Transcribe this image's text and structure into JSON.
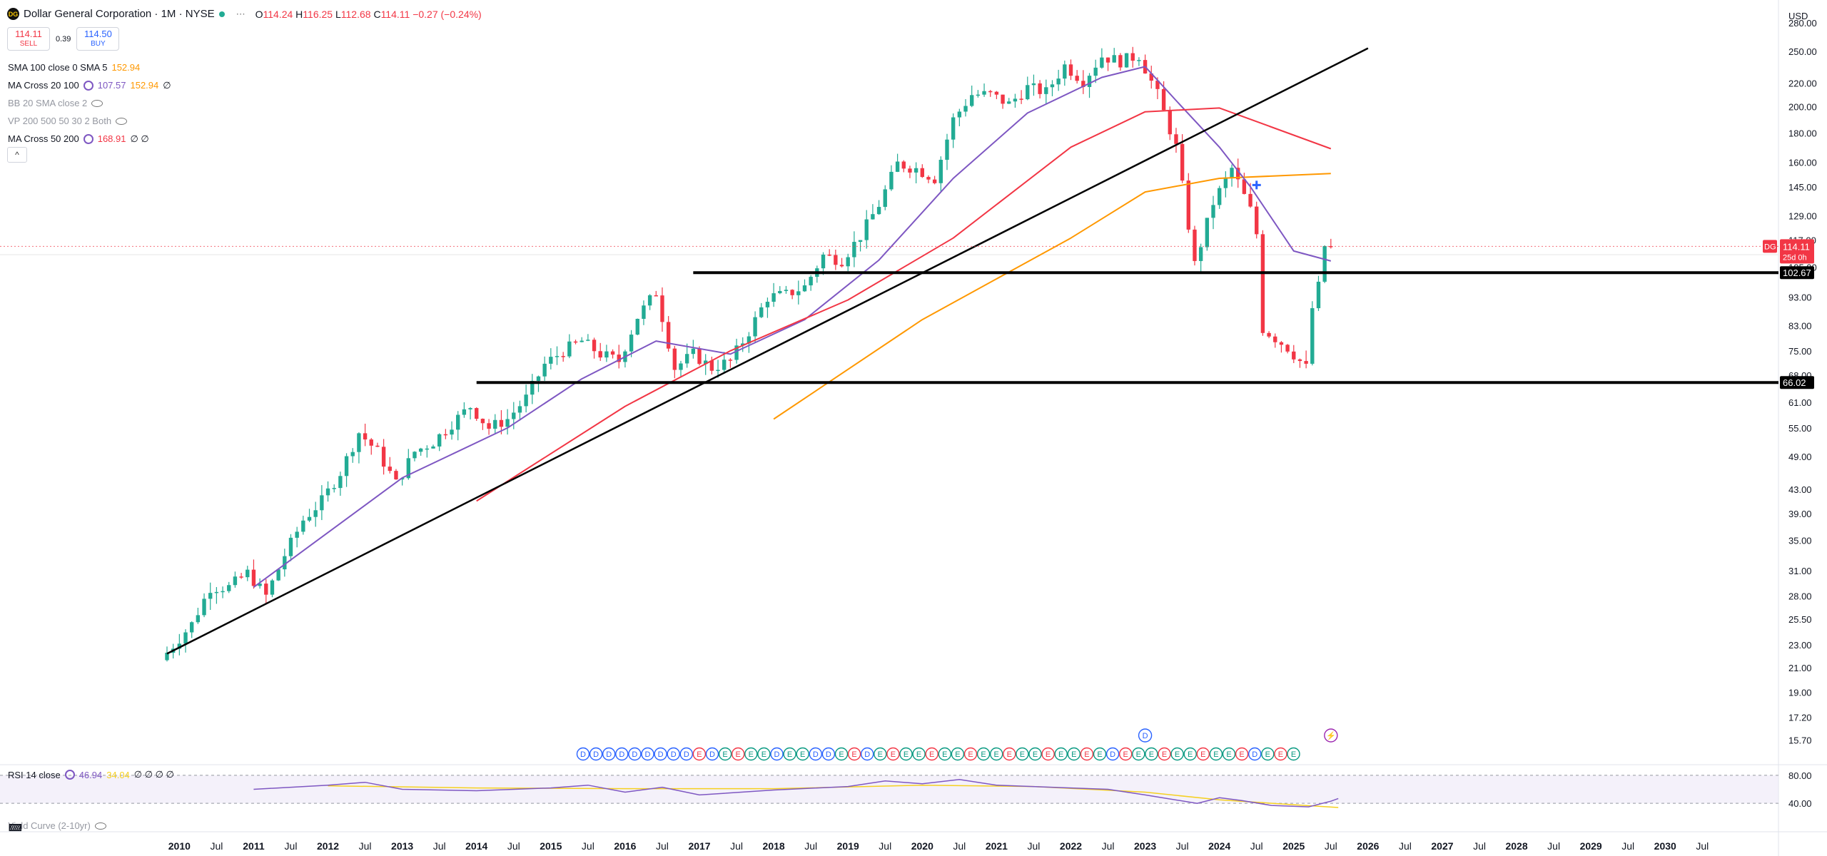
{
  "header": {
    "logo_text": "DG",
    "title": "Dollar General Corporation · 1M · NYSE",
    "ohlc": {
      "o_label": "O",
      "o": "114.24",
      "h_label": "H",
      "h": "116.25",
      "l_label": "L",
      "l": "112.68",
      "c_label": "C",
      "c": "114.11",
      "change": "−0.27 (−0.24%)"
    }
  },
  "trade": {
    "sell_price": "114.11",
    "sell_label": "SELL",
    "spread": "0.39",
    "buy_price": "114.50",
    "buy_label": "BUY"
  },
  "indicators": [
    {
      "label": "SMA 100 close 0 SMA 5",
      "v1": "152.94",
      "v1_color": "#ff9800",
      "v2": "",
      "extra": ""
    },
    {
      "label": "MA Cross 20 100",
      "v1": "107.57",
      "v1_color": "#7e57c2",
      "v2": "152.94",
      "v2_color": "#ff9800",
      "extra": "∅"
    },
    {
      "label": "BB 20 SMA close 2",
      "v1": "",
      "v2": "",
      "extra": "",
      "faded": true
    },
    {
      "label": "VP 200 500 50 30 2 Both",
      "v1": "",
      "v2": "",
      "extra": "",
      "faded": true
    },
    {
      "label": "MA Cross 50 200",
      "v1": "168.91",
      "v1_color": "#f23645",
      "v2": "",
      "extra": "∅ ∅"
    }
  ],
  "rsi_legend": {
    "label": "RSI 14 close",
    "v1": "46.94",
    "v2": "34.04",
    "extra": "∅ ∅ ∅ ∅"
  },
  "yield_legend": {
    "label": "Yield Curve (2-10yr)"
  },
  "colors": {
    "up": "#22ab94",
    "down": "#f23645",
    "ma20": "#7e57c2",
    "ma50": "#f23645",
    "sma100": "#ff9800",
    "trend": "#000000",
    "rsi": "#7e57c2",
    "rsi_ma": "#f5d020",
    "rsi_band": "#ede7f6"
  },
  "chart_data": {
    "type": "candlestick",
    "symbol": "DG",
    "price_scale": "log",
    "currency": "USD",
    "ylim": [
      14.5,
      290
    ],
    "y_ticks": [
      "280.00",
      "250.00",
      "220.00",
      "200.00",
      "180.00",
      "160.00",
      "145.00",
      "129.00",
      "117.00",
      "105.00",
      "93.00",
      "83.00",
      "75.00",
      "68.00",
      "61.00",
      "55.00",
      "49.00",
      "43.00",
      "39.00",
      "35.00",
      "31.00",
      "28.00",
      "25.50",
      "23.00",
      "21.00",
      "19.00",
      "17.20",
      "15.70"
    ],
    "x_ticks": [
      "2010",
      "Jul",
      "2011",
      "Jul",
      "2012",
      "Jul",
      "2013",
      "Jul",
      "2014",
      "Jul",
      "2015",
      "Jul",
      "2016",
      "Jul",
      "2017",
      "Jul",
      "2018",
      "Jul",
      "2019",
      "Jul",
      "2020",
      "Jul",
      "2021",
      "Jul",
      "2022",
      "Jul",
      "2023",
      "Jul",
      "2024",
      "Jul",
      "2025",
      "Jul",
      "2026",
      "Jul",
      "2027",
      "Jul",
      "2028",
      "Jul",
      "2029",
      "Jul",
      "2030",
      "Jul"
    ],
    "x_range": [
      "2009-11",
      "2030-11"
    ],
    "close_anchors": [
      [
        "2009-11",
        22.3
      ],
      [
        "2010-03",
        25
      ],
      [
        "2010-06",
        29
      ],
      [
        "2010-09",
        29
      ],
      [
        "2010-12",
        30.7
      ],
      [
        "2011-03",
        28
      ],
      [
        "2011-06",
        33
      ],
      [
        "2011-09",
        38
      ],
      [
        "2011-12",
        41
      ],
      [
        "2012-03",
        46
      ],
      [
        "2012-06",
        54
      ],
      [
        "2012-09",
        50
      ],
      [
        "2012-12",
        44
      ],
      [
        "2013-03",
        50
      ],
      [
        "2013-06",
        52
      ],
      [
        "2013-09",
        56
      ],
      [
        "2013-12",
        60
      ],
      [
        "2014-03",
        55
      ],
      [
        "2014-06",
        57
      ],
      [
        "2014-09",
        62
      ],
      [
        "2014-12",
        71
      ],
      [
        "2015-03",
        75
      ],
      [
        "2015-06",
        78
      ],
      [
        "2015-09",
        74
      ],
      [
        "2015-12",
        72
      ],
      [
        "2016-03",
        86
      ],
      [
        "2016-06",
        95
      ],
      [
        "2016-09",
        70
      ],
      [
        "2016-12",
        74
      ],
      [
        "2017-03",
        70
      ],
      [
        "2017-06",
        72
      ],
      [
        "2017-09",
        81
      ],
      [
        "2017-12",
        93
      ],
      [
        "2018-03",
        94
      ],
      [
        "2018-06",
        97
      ],
      [
        "2018-09",
        110
      ],
      [
        "2018-12",
        108
      ],
      [
        "2019-03",
        119
      ],
      [
        "2019-06",
        135
      ],
      [
        "2019-09",
        159
      ],
      [
        "2019-12",
        156
      ],
      [
        "2020-03",
        150
      ],
      [
        "2020-06",
        190
      ],
      [
        "2020-09",
        210
      ],
      [
        "2020-12",
        210
      ],
      [
        "2021-03",
        202
      ],
      [
        "2021-06",
        216
      ],
      [
        "2021-09",
        212
      ],
      [
        "2021-12",
        236
      ],
      [
        "2022-03",
        222
      ],
      [
        "2022-06",
        245
      ],
      [
        "2022-09",
        240
      ],
      [
        "2022-12",
        246
      ],
      [
        "2023-03",
        210
      ],
      [
        "2023-06",
        170
      ],
      [
        "2023-09",
        106
      ],
      [
        "2023-12",
        136
      ],
      [
        "2024-03",
        156
      ],
      [
        "2024-06",
        132
      ],
      [
        "2024-07",
        120
      ],
      [
        "2024-08",
        82
      ],
      [
        "2024-12",
        76
      ],
      [
        "2025-03",
        70
      ],
      [
        "2025-04",
        89
      ],
      [
        "2025-05",
        97
      ],
      [
        "2025-06",
        114.24
      ],
      [
        "2025-07",
        114.11
      ]
    ],
    "overlays": [
      {
        "name": "SMA 100",
        "color": "#ff9800",
        "points": [
          [
            "2018-01",
            57
          ],
          [
            "2020-01",
            85
          ],
          [
            "2022-01",
            118
          ],
          [
            "2023-01",
            142
          ],
          [
            "2024-01",
            150
          ],
          [
            "2025-07",
            152.94
          ]
        ]
      },
      {
        "name": "MA Cross 20",
        "color": "#7e57c2",
        "points": [
          [
            "2011-01",
            29
          ],
          [
            "2013-01",
            45
          ],
          [
            "2014-06",
            55
          ],
          [
            "2015-06",
            67
          ],
          [
            "2016-06",
            78
          ],
          [
            "2017-06",
            74
          ],
          [
            "2018-06",
            85
          ],
          [
            "2019-06",
            108
          ],
          [
            "2020-06",
            150
          ],
          [
            "2021-06",
            195
          ],
          [
            "2022-06",
            225
          ],
          [
            "2023-01",
            235
          ],
          [
            "2023-06",
            205
          ],
          [
            "2024-01",
            170
          ],
          [
            "2024-06",
            145
          ],
          [
            "2025-01",
            112
          ],
          [
            "2025-07",
            107.57
          ]
        ]
      },
      {
        "name": "MA Cross 50",
        "color": "#f23645",
        "points": [
          [
            "2014-01",
            41
          ],
          [
            "2016-01",
            60
          ],
          [
            "2017-06",
            75
          ],
          [
            "2019-01",
            92
          ],
          [
            "2020-06",
            118
          ],
          [
            "2022-01",
            170
          ],
          [
            "2023-01",
            196
          ],
          [
            "2024-01",
            199
          ],
          [
            "2025-07",
            168.91
          ]
        ]
      }
    ],
    "horizontal_levels": [
      {
        "value": 102.67,
        "label": "102.67",
        "from": "2016-12"
      },
      {
        "value": 66.02,
        "label": "66.02",
        "from": "2014-01"
      }
    ],
    "trend_line": [
      [
        "2009-11",
        22.2
      ],
      [
        "2026-01",
        253
      ]
    ],
    "last_price": {
      "symbol": "DG",
      "value": "114.11",
      "countdown": "25d 0h"
    },
    "events": {
      "row": [
        "D",
        "D",
        "D",
        "D",
        "D",
        "D",
        "D",
        "D",
        "D",
        "E",
        "D",
        "E",
        "E",
        "E",
        "E",
        "D",
        "E",
        "E",
        "D",
        "D",
        "E",
        "E",
        "D",
        "E",
        "E",
        "E",
        "E",
        "E",
        "E",
        "E",
        "E",
        "E",
        "E",
        "E",
        "E",
        "E",
        "E",
        "E",
        "E",
        "E",
        "E",
        "D",
        "E",
        "E",
        "E",
        "E",
        "E",
        "E",
        "E",
        "E",
        "E",
        "E",
        "D",
        "E",
        "E",
        "E"
      ],
      "upper": [
        {
          "label": "D",
          "at": "2023-01"
        },
        {
          "label": "⚡",
          "at": "2025-07"
        }
      ]
    },
    "rsi": {
      "levels": [
        "80.00",
        "40.00"
      ],
      "points": [
        [
          2011,
          60
        ],
        [
          2012,
          66
        ],
        [
          2012.5,
          70
        ],
        [
          2013,
          60
        ],
        [
          2014,
          58
        ],
        [
          2015,
          62
        ],
        [
          2015.5,
          66
        ],
        [
          2016,
          56
        ],
        [
          2016.5,
          63
        ],
        [
          2017,
          52
        ],
        [
          2018,
          59
        ],
        [
          2019,
          64
        ],
        [
          2019.5,
          72
        ],
        [
          2020,
          68
        ],
        [
          2020.5,
          74
        ],
        [
          2021,
          66
        ],
        [
          2022,
          62
        ],
        [
          2022.5,
          60
        ],
        [
          2023,
          52
        ],
        [
          2023.7,
          40
        ],
        [
          2024,
          48
        ],
        [
          2024.3,
          44
        ],
        [
          2024.7,
          37
        ],
        [
          2025.2,
          35
        ],
        [
          2025.5,
          43
        ],
        [
          2025.6,
          46.94
        ]
      ],
      "ma_points": [
        [
          2012,
          65
        ],
        [
          2014,
          62
        ],
        [
          2016,
          61
        ],
        [
          2018,
          61
        ],
        [
          2020,
          66
        ],
        [
          2021.5,
          64
        ],
        [
          2023,
          56
        ],
        [
          2024,
          45
        ],
        [
          2025,
          38
        ],
        [
          2025.6,
          34.04
        ]
      ]
    }
  }
}
